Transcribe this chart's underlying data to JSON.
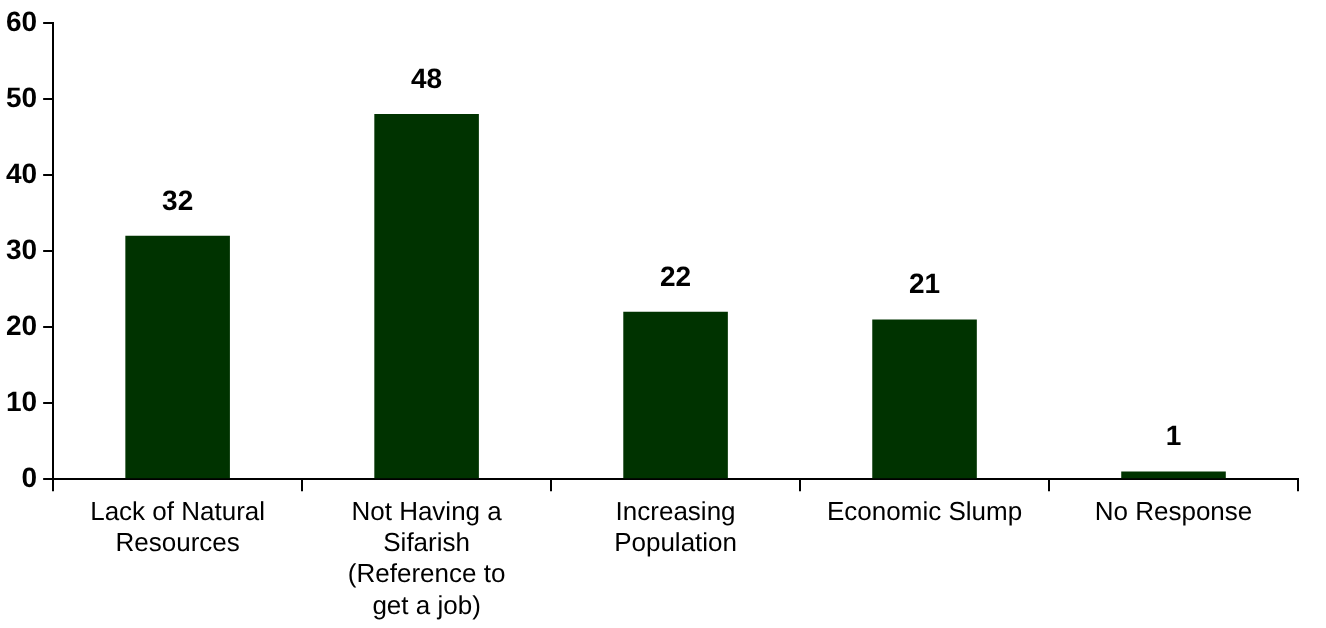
{
  "chart_data": {
    "type": "bar",
    "categories": [
      "Lack of Natural Resources",
      "Not Having a Sifarish (Reference to get a job)",
      "Increasing Population",
      "Economic Slump",
      "No Response"
    ],
    "values": [
      32,
      48,
      22,
      21,
      1
    ],
    "color": "#003300",
    "ylim": [
      0,
      60
    ],
    "yticks": [
      0,
      10,
      20,
      30,
      40,
      50,
      60
    ],
    "grid": false,
    "legend": false,
    "data_labels": true
  }
}
